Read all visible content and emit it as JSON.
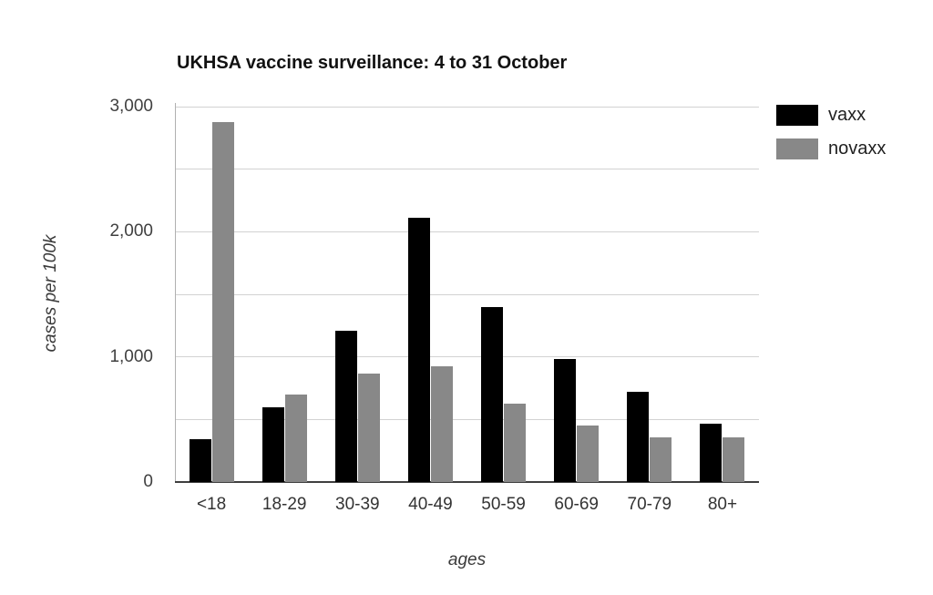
{
  "chart_data": {
    "type": "bar",
    "title": "UKHSA vaccine surveillance: 4 to 31 October",
    "xlabel": "ages",
    "ylabel": "cases per 100k",
    "categories": [
      "<18",
      "18-29",
      "30-39",
      "40-49",
      "50-59",
      "60-69",
      "70-79",
      "80+"
    ],
    "series": [
      {
        "name": "vaxx",
        "color": "#000000",
        "values": [
          345,
          600,
          1210,
          2115,
          1400,
          980,
          720,
          465
        ]
      },
      {
        "name": "novaxx",
        "color": "#888888",
        "values": [
          2875,
          700,
          870,
          925,
          630,
          450,
          360,
          360
        ]
      }
    ],
    "ylim": [
      0,
      3000
    ],
    "gridline_step": 500,
    "y_ticks": [
      {
        "value": 0,
        "label": "0"
      },
      {
        "value": 1000,
        "label": "1,000"
      },
      {
        "value": 2000,
        "label": "2,000"
      },
      {
        "value": 3000,
        "label": "3,000"
      }
    ],
    "grid": "horizontal",
    "legend_position": "top-right"
  },
  "colors": {
    "gridline": "#d2d2d2",
    "x_axis_line": "#3f3f3f",
    "y_axis_line": "#b0b0b0",
    "tick_text": "#404040",
    "title_text": "#111111"
  }
}
